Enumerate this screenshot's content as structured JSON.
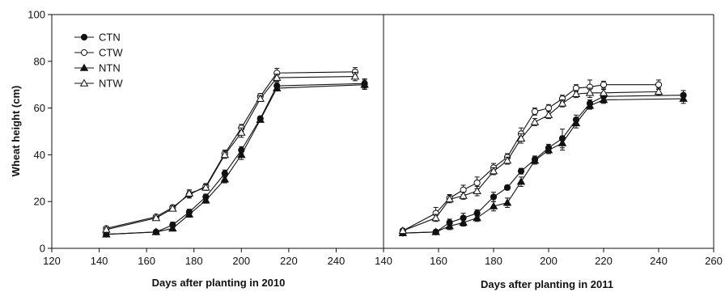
{
  "chart_data": [
    {
      "type": "line",
      "panel": "left",
      "xlabel": "Days after planting in 2010",
      "ylabel": "Wheat height (cm)",
      "xlim": [
        120,
        260
      ],
      "ylim": [
        0,
        100
      ],
      "xticks": [
        "120",
        "140",
        "160",
        "180",
        "200",
        "220",
        "240",
        "260"
      ],
      "yticks": [
        "0",
        "20",
        "40",
        "60",
        "80",
        "100"
      ],
      "grid": false,
      "legend_position": "top-left",
      "series": [
        {
          "name": "CTN",
          "marker": "filled-circle",
          "x": [
            143,
            164,
            171,
            178,
            185,
            193,
            200,
            208,
            215,
            252
          ],
          "y": [
            6.0,
            7.0,
            10.0,
            15.5,
            22.0,
            32.0,
            42.0,
            55.5,
            69.5,
            70.5
          ],
          "err": [
            0.6,
            0.6,
            1.2,
            1.2,
            1.2,
            1.5,
            1.5,
            1.0,
            1.5,
            2.0
          ]
        },
        {
          "name": "CTW",
          "marker": "open-circle",
          "x": [
            143,
            164,
            171,
            178,
            185,
            193,
            200,
            208,
            215,
            248
          ],
          "y": [
            8.5,
            13.5,
            17.5,
            23.0,
            26.5,
            40.5,
            51.5,
            65.0,
            75.0,
            75.5
          ],
          "err": [
            0.8,
            0.8,
            1.0,
            1.5,
            1.2,
            1.5,
            1.5,
            1.2,
            2.0,
            1.8
          ]
        },
        {
          "name": "NTN",
          "marker": "filled-triangle",
          "x": [
            143,
            164,
            171,
            178,
            185,
            193,
            200,
            208,
            215,
            252
          ],
          "y": [
            6.0,
            7.0,
            8.5,
            14.5,
            20.5,
            29.5,
            40.0,
            55.0,
            68.5,
            70.0
          ],
          "err": [
            0.6,
            0.6,
            1.0,
            1.2,
            1.2,
            1.5,
            2.0,
            1.0,
            1.2,
            2.0
          ]
        },
        {
          "name": "NTW",
          "marker": "open-triangle",
          "x": [
            143,
            164,
            171,
            178,
            185,
            193,
            200,
            208,
            215,
            248
          ],
          "y": [
            8.0,
            13.0,
            17.0,
            23.5,
            26.0,
            40.0,
            49.5,
            64.0,
            73.0,
            73.5
          ],
          "err": [
            0.8,
            0.8,
            1.0,
            1.5,
            1.2,
            1.5,
            2.0,
            1.2,
            1.5,
            1.8
          ]
        }
      ]
    },
    {
      "type": "line",
      "panel": "right",
      "xlabel": "Days after planting in 2011",
      "ylabel": "",
      "xlim": [
        140,
        260
      ],
      "ylim": [
        0,
        100
      ],
      "xticks": [
        "140",
        "160",
        "180",
        "200",
        "220",
        "240",
        "260"
      ],
      "yticks": [],
      "grid": false,
      "series": [
        {
          "name": "CTN",
          "marker": "filled-circle",
          "x": [
            147,
            159,
            164,
            169,
            174,
            180,
            185,
            190,
            195,
            200,
            205,
            210,
            215,
            220,
            249
          ],
          "y": [
            6.5,
            7.0,
            11.0,
            13.0,
            15.0,
            22.0,
            26.0,
            33.0,
            38.0,
            43.0,
            47.0,
            55.0,
            62.0,
            65.0,
            65.5
          ],
          "err": [
            0.5,
            0.8,
            1.5,
            2.0,
            1.5,
            2.0,
            1.0,
            1.2,
            1.5,
            1.5,
            4.0,
            2.0,
            1.5,
            1.5,
            2.0
          ]
        },
        {
          "name": "CTW",
          "marker": "open-circle",
          "x": [
            147,
            159,
            164,
            169,
            174,
            180,
            185,
            190,
            195,
            200,
            205,
            210,
            215,
            220,
            240
          ],
          "y": [
            7.5,
            15.0,
            21.5,
            25.0,
            28.0,
            34.5,
            39.0,
            49.0,
            58.5,
            60.0,
            64.0,
            68.5,
            69.0,
            70.0,
            70.0
          ],
          "err": [
            0.6,
            2.5,
            1.5,
            2.0,
            2.5,
            1.8,
            1.5,
            2.5,
            1.5,
            1.5,
            1.5,
            1.5,
            3.0,
            1.5,
            2.0
          ]
        },
        {
          "name": "NTN",
          "marker": "filled-triangle",
          "x": [
            147,
            159,
            164,
            169,
            174,
            180,
            185,
            190,
            195,
            200,
            205,
            210,
            215,
            220,
            249
          ],
          "y": [
            6.5,
            7.0,
            9.5,
            11.0,
            13.0,
            18.0,
            19.5,
            28.5,
            37.5,
            42.0,
            45.0,
            53.5,
            61.0,
            63.5,
            64.0
          ],
          "err": [
            0.5,
            0.8,
            1.5,
            1.5,
            1.5,
            2.0,
            2.0,
            2.0,
            1.5,
            1.5,
            3.0,
            2.0,
            1.5,
            1.5,
            2.0
          ]
        },
        {
          "name": "NTW",
          "marker": "open-triangle",
          "x": [
            147,
            159,
            164,
            169,
            174,
            180,
            185,
            190,
            195,
            200,
            205,
            210,
            215,
            220,
            240
          ],
          "y": [
            7.5,
            13.0,
            21.0,
            22.5,
            24.5,
            33.0,
            37.5,
            47.0,
            54.0,
            57.0,
            62.0,
            66.0,
            66.5,
            66.5,
            67.0
          ],
          "err": [
            0.6,
            1.5,
            1.5,
            1.5,
            2.0,
            1.5,
            1.5,
            2.0,
            1.5,
            1.5,
            1.5,
            1.5,
            2.0,
            1.5,
            1.5
          ]
        }
      ]
    }
  ]
}
